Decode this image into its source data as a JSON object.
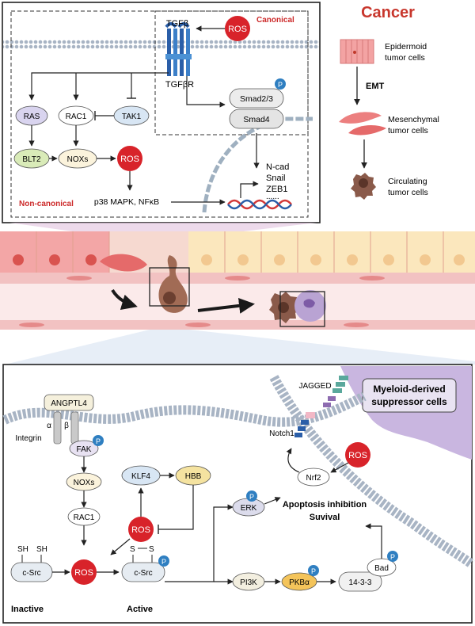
{
  "colors": {
    "ros": "#d8232a",
    "phospho": "#2f7fc1",
    "canonical_label": "#cc2a2a",
    "cancer_title": "#c8372d",
    "ras": "#d9d4ef",
    "blt2": "#d9ebb8",
    "klf4": "#d8e6f4",
    "hbb": "#f5e3a0",
    "pkb": "#f4c45a",
    "erk": "#dcdcec",
    "mdsc": "#b9a3d3"
  },
  "top": {
    "tgfb": "TGFβ",
    "tgfbr": "TGFβR",
    "ros_canonical": "ROS",
    "canonical": "Canonical",
    "non_canonical": "Non-canonical",
    "ras": "RAS",
    "rac1": "RAC1",
    "tak1": "TAK1",
    "blt2": "BLT2",
    "noxs": "NOXs",
    "ros_nc": "ROS",
    "p38": "p38 MAPK, NFκB",
    "smad23": "Smad2/3",
    "smad4": "Smad4",
    "p": "P",
    "genes": [
      "N-cad",
      "Snail",
      "ZEB1",
      "......"
    ]
  },
  "cancer": {
    "title": "Cancer",
    "epidermoid": [
      "Epidermoid",
      "tumor cells"
    ],
    "emt": "EMT",
    "mesenchymal": [
      "Mesenchymal",
      "tumor cells"
    ],
    "circulating": [
      "Circulating",
      "tumor cells"
    ]
  },
  "bottom": {
    "angptl4": "ANGPTL4",
    "alpha": "α",
    "beta": "β",
    "integrin": "Integrin",
    "fak": "FAK",
    "noxs": "NOXs",
    "rac1": "RAC1",
    "klf4": "KLF4",
    "hbb": "HBB",
    "ros_center": "ROS",
    "ros_lower": "ROS",
    "ros_mdsc": "ROS",
    "sh_left": "SH",
    "sh_right": "SH",
    "csrc_inactive": "c-Src",
    "inactive": "Inactive",
    "s_left": "S",
    "s_right": "S",
    "csrc_active": "c-Src",
    "active": "Active",
    "erk": "ERK",
    "pi3k": "PI3K",
    "pkb": "PKBα",
    "p1433": "14-3-3",
    "bad": "Bad",
    "apoptosis": "Apoptosis inhibition",
    "survival": "Suvival",
    "jagged": "JAGGED",
    "notch1": "Notch1",
    "nrf2": "Nrf2",
    "mdsc": [
      "Myeloid-derived",
      "suppressor cells"
    ],
    "p": "P"
  }
}
